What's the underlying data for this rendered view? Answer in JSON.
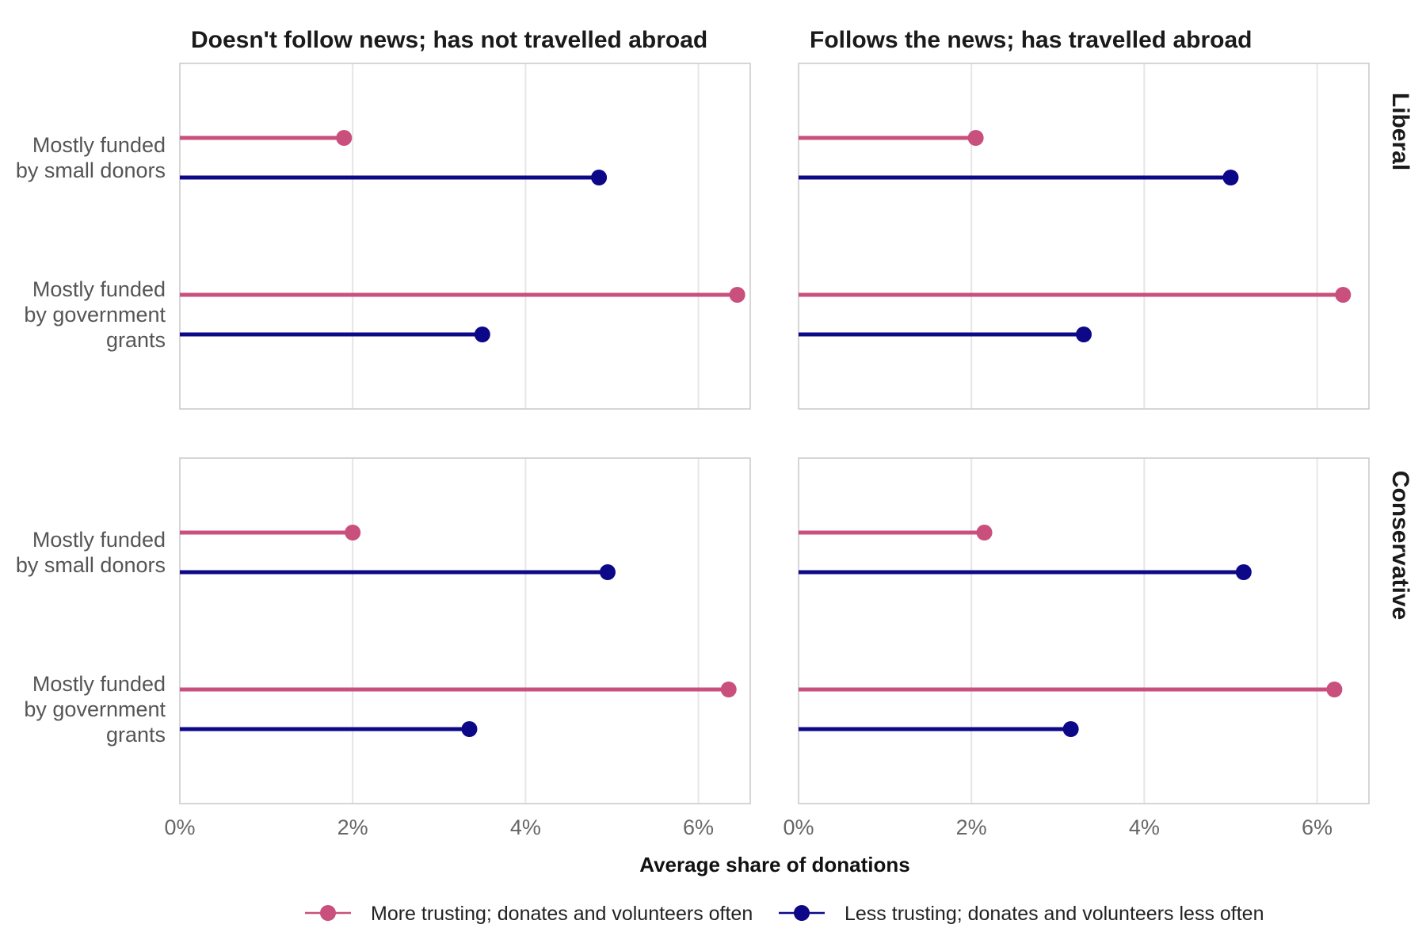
{
  "chart_data": {
    "type": "lollipop",
    "x_axis": {
      "title": "Average share of donations",
      "range": [
        0,
        6.6
      ],
      "ticks": [
        0,
        2,
        4,
        6
      ],
      "tick_labels": [
        "0%",
        "2%",
        "4%",
        "6%"
      ]
    },
    "columns": [
      "Doesn't follow news; has not travelled abroad",
      "Follows the news; has travelled abroad"
    ],
    "rows": [
      "Liberal",
      "Conservative"
    ],
    "categories": [
      {
        "key": "small",
        "label_lines": [
          "Mostly funded",
          "by small donors"
        ]
      },
      {
        "key": "gov",
        "label_lines": [
          "Mostly funded",
          "by government",
          "grants"
        ]
      }
    ],
    "series": [
      {
        "name": "More trusting; donates and volunteers often",
        "color": "#c94f7c"
      },
      {
        "name": "Less trusting; donates and volunteers less often",
        "color": "#0d0887"
      }
    ],
    "panels": [
      {
        "row": 0,
        "col": 0,
        "values": {
          "small": [
            1.9,
            4.85
          ],
          "gov": [
            6.45,
            3.5
          ]
        }
      },
      {
        "row": 0,
        "col": 1,
        "values": {
          "small": [
            2.05,
            5.0
          ],
          "gov": [
            6.3,
            3.3
          ]
        }
      },
      {
        "row": 1,
        "col": 0,
        "values": {
          "small": [
            2.0,
            4.95
          ],
          "gov": [
            6.35,
            3.35
          ]
        }
      },
      {
        "row": 1,
        "col": 1,
        "values": {
          "small": [
            2.15,
            5.15
          ],
          "gov": [
            6.2,
            3.15
          ]
        }
      }
    ]
  }
}
